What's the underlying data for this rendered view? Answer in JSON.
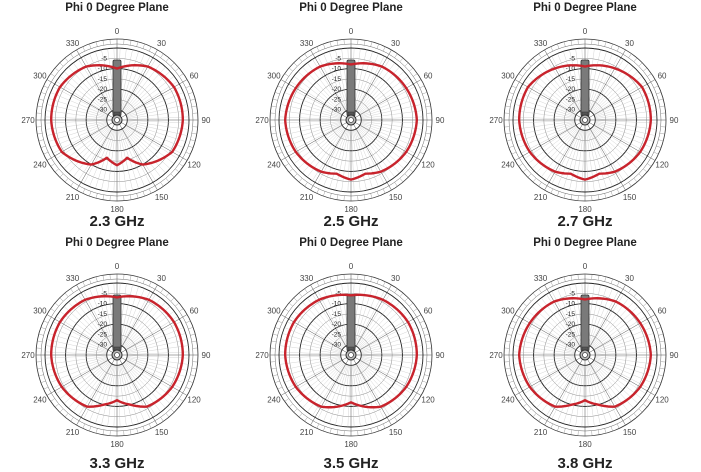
{
  "chart_data": [
    {
      "type": "polar",
      "title": "Phi 0 Degree Plane",
      "label": "2.3 GHz",
      "angular_ticks": [
        "0",
        "30",
        "60",
        "90",
        "120",
        "150",
        "180",
        "210",
        "240",
        "270",
        "300",
        "330"
      ],
      "radial_ticks": [
        "-5",
        "-10",
        "-15",
        "-20",
        "-25",
        "-30"
      ],
      "rlim": [
        -35,
        0
      ],
      "series": [
        {
          "color": "#c8232c",
          "theta": [
            0,
            30,
            60,
            90,
            120,
            150,
            165,
            180,
            195,
            210,
            240,
            270,
            300,
            330
          ],
          "r": [
            -10,
            -5,
            -3,
            -3,
            -4,
            -10,
            -16,
            -13,
            -16,
            -10,
            -4,
            -3,
            -3,
            -5
          ]
        }
      ]
    },
    {
      "type": "polar",
      "title": "Phi 0 Degree Plane",
      "label": "2.5 GHz",
      "angular_ticks": [
        "0",
        "30",
        "60",
        "90",
        "120",
        "150",
        "180",
        "210",
        "240",
        "270",
        "300",
        "330"
      ],
      "radial_ticks": [
        "-5",
        "-10",
        "-15",
        "-20",
        "-25",
        "-30"
      ],
      "rlim": [
        -35,
        0
      ],
      "series": [
        {
          "color": "#c8232c",
          "theta": [
            0,
            30,
            60,
            90,
            120,
            150,
            165,
            180,
            195,
            210,
            240,
            270,
            300,
            330
          ],
          "r": [
            -8,
            -5,
            -4,
            -3,
            -4,
            -6,
            -8,
            -6,
            -8,
            -6,
            -4,
            -3,
            -4,
            -5
          ]
        }
      ]
    },
    {
      "type": "polar",
      "title": "Phi 0 Degree Plane",
      "label": "2.7 GHz",
      "angular_ticks": [
        "0",
        "30",
        "60",
        "90",
        "120",
        "150",
        "180",
        "210",
        "240",
        "270",
        "300",
        "330"
      ],
      "radial_ticks": [
        "-5",
        "-10",
        "-15",
        "-20",
        "-25",
        "-30"
      ],
      "rlim": [
        -35,
        0
      ],
      "series": [
        {
          "color": "#c8232c",
          "theta": [
            0,
            30,
            60,
            90,
            120,
            150,
            165,
            180,
            195,
            210,
            240,
            270,
            300,
            330
          ],
          "r": [
            -9,
            -6,
            -3,
            -3,
            -4,
            -6,
            -8,
            -6,
            -8,
            -6,
            -4,
            -3,
            -3,
            -6
          ]
        }
      ]
    },
    {
      "type": "polar",
      "title": "Phi 0 Degree Plane",
      "label": "3.3 GHz",
      "angular_ticks": [
        "0",
        "30",
        "60",
        "90",
        "120",
        "150",
        "180",
        "210",
        "240",
        "270",
        "300",
        "330"
      ],
      "radial_ticks": [
        "-5",
        "-10",
        "-15",
        "-20",
        "-25",
        "-30"
      ],
      "rlim": [
        -35,
        0
      ],
      "series": [
        {
          "color": "#c8232c",
          "theta": [
            0,
            30,
            60,
            90,
            120,
            150,
            165,
            180,
            195,
            210,
            240,
            270,
            300,
            330
          ],
          "r": [
            -7,
            -4,
            -3,
            -3,
            -4,
            -6,
            -10,
            -13,
            -10,
            -6,
            -4,
            -3,
            -3,
            -4
          ]
        }
      ]
    },
    {
      "type": "polar",
      "title": "Phi 0 Degree Plane",
      "label": "3.5 GHz",
      "angular_ticks": [
        "0",
        "30",
        "60",
        "90",
        "120",
        "150",
        "180",
        "210",
        "240",
        "270",
        "300",
        "330"
      ],
      "radial_ticks": [
        "-5",
        "-10",
        "-15",
        "-20",
        "-25",
        "-30"
      ],
      "rlim": [
        -35,
        0
      ],
      "series": [
        {
          "color": "#c8232c",
          "theta": [
            0,
            30,
            60,
            90,
            120,
            150,
            165,
            180,
            195,
            210,
            240,
            270,
            300,
            330
          ],
          "r": [
            -6,
            -4,
            -3,
            -3,
            -4,
            -6,
            -9,
            -12,
            -9,
            -6,
            -4,
            -3,
            -3,
            -4
          ]
        }
      ]
    },
    {
      "type": "polar",
      "title": "Phi 0 Degree Plane",
      "label": "3.8 GHz",
      "angular_ticks": [
        "0",
        "30",
        "60",
        "90",
        "120",
        "150",
        "180",
        "210",
        "240",
        "270",
        "300",
        "330"
      ],
      "radial_ticks": [
        "-5",
        "-10",
        "-15",
        "-20",
        "-25",
        "-30"
      ],
      "rlim": [
        -35,
        0
      ],
      "series": [
        {
          "color": "#c8232c",
          "theta": [
            0,
            30,
            60,
            90,
            120,
            150,
            165,
            180,
            195,
            210,
            240,
            270,
            300,
            330
          ],
          "r": [
            -8,
            -5,
            -4,
            -3,
            -4,
            -6,
            -10,
            -13,
            -10,
            -6,
            -4,
            -3,
            -4,
            -5
          ]
        }
      ]
    }
  ]
}
